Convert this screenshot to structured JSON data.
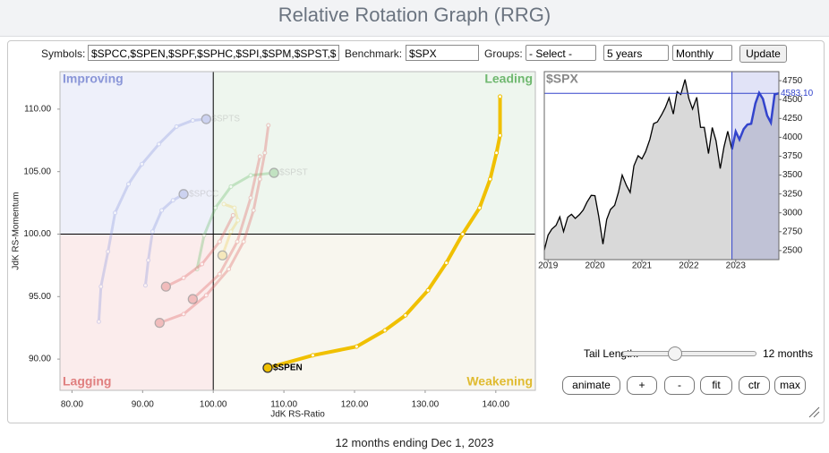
{
  "header": {
    "title": "Relative Rotation Graph (RRG)"
  },
  "controls": {
    "symbols_label": "Symbols:",
    "symbols": "$SPCC,$SPEN,$SPF,$SPHC,$SPI,$SPM,$SPST,$",
    "benchmark_label": "Benchmark:",
    "benchmark": "$SPX",
    "groups_label": "Groups:",
    "groups": "- Select -",
    "period": "5 years",
    "frequency": "Monthly",
    "update": "Update"
  },
  "chart_data": [
    {
      "type": "rrg",
      "x_label": "JdK RS-Ratio",
      "y_label": "JdK RS-Momentum",
      "xlim": [
        78.3,
        145.6
      ],
      "ylim": [
        87.5,
        113
      ],
      "center": [
        100,
        100
      ],
      "xticks": [
        {
          "value": 80,
          "label": "80.00"
        },
        {
          "value": 90,
          "label": "90.00"
        },
        {
          "value": 100,
          "label": "100.00"
        },
        {
          "value": 110,
          "label": "110.00"
        },
        {
          "value": 120,
          "label": "120.00"
        },
        {
          "value": 130,
          "label": "130.00"
        },
        {
          "value": 140,
          "label": "140.00"
        }
      ],
      "yticks": [
        {
          "value": 90,
          "label": "90.00"
        },
        {
          "value": 95,
          "label": "95.00"
        },
        {
          "value": 100,
          "label": "100.00"
        },
        {
          "value": 105,
          "label": "105.00"
        },
        {
          "value": 110,
          "label": "110.00"
        }
      ],
      "quadrants": [
        {
          "name": "Improving",
          "corner": "top-left",
          "fill": "#eef0fa",
          "color": "#8a96d8"
        },
        {
          "name": "Leading",
          "corner": "top-right",
          "fill": "#eef6ee",
          "color": "#6fb86f"
        },
        {
          "name": "Lagging",
          "corner": "bottom-left",
          "fill": "#fbecec",
          "color": "#e07f7f"
        },
        {
          "name": "Weakening",
          "corner": "bottom-right",
          "fill": "#f8f6ee",
          "color": "#e0bb30"
        }
      ],
      "series": [
        {
          "name": "$SPTS",
          "color": "#8f9be0",
          "highlighted": false,
          "x": [
            83.8,
            84.1,
            85.1,
            86.1,
            88.0,
            89.9,
            92.3,
            94.8,
            97.1,
            99.0
          ],
          "y": [
            93.0,
            95.8,
            98.6,
            101.7,
            104.0,
            105.6,
            107.2,
            108.6,
            109.1,
            109.2
          ]
        },
        {
          "name": "$SPCC",
          "color": "#8f9be0",
          "highlighted": false,
          "x": [
            90.4,
            90.8,
            91.4,
            92.7,
            94.3,
            95.8
          ],
          "y": [
            95.9,
            97.9,
            100.2,
            101.9,
            102.7,
            103.2
          ]
        },
        {
          "name": "$SPST",
          "color": "#6fbf6f",
          "highlighted": false,
          "x": [
            97.7,
            98.7,
            100.3,
            102.5,
            105.3,
            108.6
          ],
          "y": [
            97.2,
            99.9,
            102.1,
            103.8,
            104.7,
            104.9
          ]
        },
        {
          "color": "#e06666",
          "highlighted": false,
          "x": [
            107.8,
            107.3,
            106.6,
            105.7,
            104.3,
            102.2,
            99.0,
            95.8,
            92.4
          ],
          "y": [
            108.7,
            106.5,
            104.4,
            101.9,
            99.4,
            97.2,
            95.1,
            93.6,
            92.9
          ]
        },
        {
          "color": "#e06666",
          "highlighted": false,
          "x": [
            102.8,
            100.9,
            98.4,
            95.8,
            93.3
          ],
          "y": [
            101.5,
            99.4,
            97.6,
            96.5,
            95.8
          ]
        },
        {
          "color": "#e06666",
          "highlighted": false,
          "x": [
            106.6,
            105.3,
            103.4,
            100.9,
            97.1
          ],
          "y": [
            106.2,
            102.9,
            99.4,
            96.8,
            94.8
          ]
        },
        {
          "color": "#f0d060",
          "highlighted": false,
          "x": [
            101.5,
            103.0,
            103.5,
            102.5,
            101.3
          ],
          "y": [
            102.4,
            102.1,
            101.1,
            100.2,
            98.3
          ]
        },
        {
          "name": "$SPEN",
          "color": "#f0c000",
          "highlighted": true,
          "x": [
            140.6,
            140.6,
            140.1,
            139.2,
            137.7,
            135.3,
            133.0,
            130.4,
            127.2,
            124.3,
            120.3,
            114.1,
            107.7
          ],
          "y": [
            111.0,
            107.9,
            106.5,
            104.4,
            102.1,
            100.0,
            97.7,
            95.5,
            93.5,
            92.3,
            91.0,
            90.3,
            89.3
          ]
        }
      ]
    },
    {
      "type": "line",
      "title": "$SPX",
      "color": "#000000",
      "highlight_color": "#3344cc",
      "area_color": "#d9d9d9",
      "xlim": [
        2018.92,
        2023.92
      ],
      "ylim": [
        2380,
        4870
      ],
      "xticks": [
        2019,
        2020,
        2021,
        2022,
        2023
      ],
      "yticks": [
        2500,
        2750,
        3000,
        3250,
        3500,
        3750,
        4000,
        4250,
        4500,
        4750
      ],
      "highlight_start": 2022.92,
      "last_value": {
        "value": 4583.1,
        "label": "4583.10"
      },
      "x": [
        2018.92,
        2019.0,
        2019.08,
        2019.17,
        2019.25,
        2019.33,
        2019.42,
        2019.5,
        2019.58,
        2019.67,
        2019.75,
        2019.83,
        2019.92,
        2020.0,
        2020.08,
        2020.17,
        2020.25,
        2020.33,
        2020.42,
        2020.5,
        2020.58,
        2020.67,
        2020.75,
        2020.83,
        2020.92,
        2021.0,
        2021.08,
        2021.17,
        2021.25,
        2021.33,
        2021.42,
        2021.5,
        2021.58,
        2021.67,
        2021.75,
        2021.83,
        2021.92,
        2022.0,
        2022.08,
        2022.17,
        2022.25,
        2022.33,
        2022.42,
        2022.5,
        2022.58,
        2022.67,
        2022.75,
        2022.83,
        2022.92,
        2023.0,
        2023.08,
        2023.17,
        2023.25,
        2023.33,
        2023.42,
        2023.5,
        2023.58,
        2023.67,
        2023.75,
        2023.83,
        2023.92
      ],
      "values": [
        2507,
        2704,
        2784,
        2834,
        2946,
        2752,
        2942,
        2980,
        2926,
        2977,
        3038,
        3141,
        3231,
        3226,
        2954,
        2585,
        2912,
        3044,
        3100,
        3271,
        3500,
        3363,
        3270,
        3622,
        3756,
        3714,
        3811,
        3973,
        4181,
        4204,
        4298,
        4395,
        4523,
        4308,
        4605,
        4567,
        4766,
        4516,
        4374,
        4530,
        4132,
        4132,
        3785,
        4130,
        3955,
        3586,
        3872,
        4080,
        3840,
        4077,
        3970,
        4109,
        4169,
        4180,
        4450,
        4589,
        4508,
        4288,
        4194,
        4568,
        4583
      ]
    }
  ],
  "tail": {
    "label": "Tail Length:",
    "value": "12 months"
  },
  "buttons": [
    "animate",
    "+",
    "-",
    "fit",
    "ctr",
    "max"
  ],
  "footer": "12 months ending Dec 1, 2023"
}
